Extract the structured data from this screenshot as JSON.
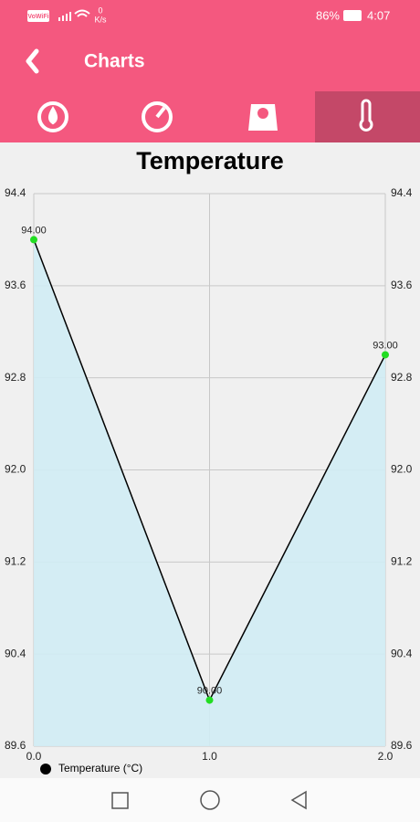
{
  "status_bar": {
    "network": "VoWiFi",
    "speed_value": "0",
    "speed_unit": "K/s",
    "battery": "86%",
    "time": "4:07"
  },
  "app_bar": {
    "title": "Charts"
  },
  "chart_data": {
    "type": "line",
    "title": "Temperature",
    "x": [
      0,
      1,
      2
    ],
    "values": [
      94,
      90,
      93
    ],
    "value_labels": [
      "94.00",
      "90.00",
      "93.00"
    ],
    "series_name": "Temperature (°C)",
    "line_color": "#000000",
    "marker_color": "#22dd22",
    "fill_color": "#d0ecf4",
    "xlim": [
      0,
      2
    ],
    "xticks": [
      {
        "value": 0,
        "label": "0.0"
      },
      {
        "value": 1,
        "label": "1.0"
      },
      {
        "value": 2,
        "label": "2.0"
      }
    ],
    "ylim": [
      89.6,
      94.4
    ],
    "yticks": [
      89.6,
      90.4,
      91.2,
      {
        "value": 92,
        "label": "92.0"
      },
      92.8,
      93.6,
      94.4
    ],
    "y2lim": [
      89.6,
      94.4
    ],
    "y2ticks": [
      89.6,
      90.4,
      91.2,
      {
        "value": 92,
        "label": "92.0"
      },
      92.8,
      93.6,
      94.4
    ],
    "grid": true,
    "fill_area": true,
    "legend": "bottom-left"
  }
}
